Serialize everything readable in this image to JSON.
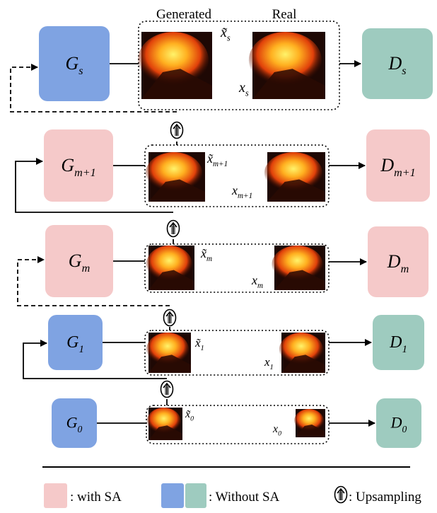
{
  "header": {
    "generated": "Generated",
    "real": "Real"
  },
  "rows": [
    {
      "generator": {
        "symbol": "G",
        "subscript": "s"
      },
      "generated": {
        "symbol": "x̃",
        "subscript": "s"
      },
      "real": {
        "symbol": "x",
        "subscript": "s"
      },
      "discriminator": {
        "symbol": "D",
        "subscript": "s"
      }
    },
    {
      "generator": {
        "symbol": "G",
        "subscript": "m+1"
      },
      "generated": {
        "symbol": "x̃",
        "subscript": "m+1"
      },
      "real": {
        "symbol": "x",
        "subscript": "m+1"
      },
      "discriminator": {
        "symbol": "D",
        "subscript": "m+1"
      }
    },
    {
      "generator": {
        "symbol": "G",
        "subscript": "m"
      },
      "generated": {
        "symbol": "x̃",
        "subscript": "m"
      },
      "real": {
        "symbol": "x",
        "subscript": "m"
      },
      "discriminator": {
        "symbol": "D",
        "subscript": "m"
      }
    },
    {
      "generator": {
        "symbol": "G",
        "subscript": "1"
      },
      "generated": {
        "symbol": "x̃",
        "subscript": "1"
      },
      "real": {
        "symbol": "x",
        "subscript": "1"
      },
      "discriminator": {
        "symbol": "D",
        "subscript": "1"
      }
    },
    {
      "generator": {
        "symbol": "G",
        "subscript": "0"
      },
      "generated": {
        "symbol": "x̃",
        "subscript": "0"
      },
      "real": {
        "symbol": "x",
        "subscript": "0"
      },
      "discriminator": {
        "symbol": "D",
        "subscript": "0"
      }
    }
  ],
  "legend": {
    "with_sa": ": with SA",
    "without_sa": ": Without SA",
    "upsampling": ": Upsampling"
  }
}
